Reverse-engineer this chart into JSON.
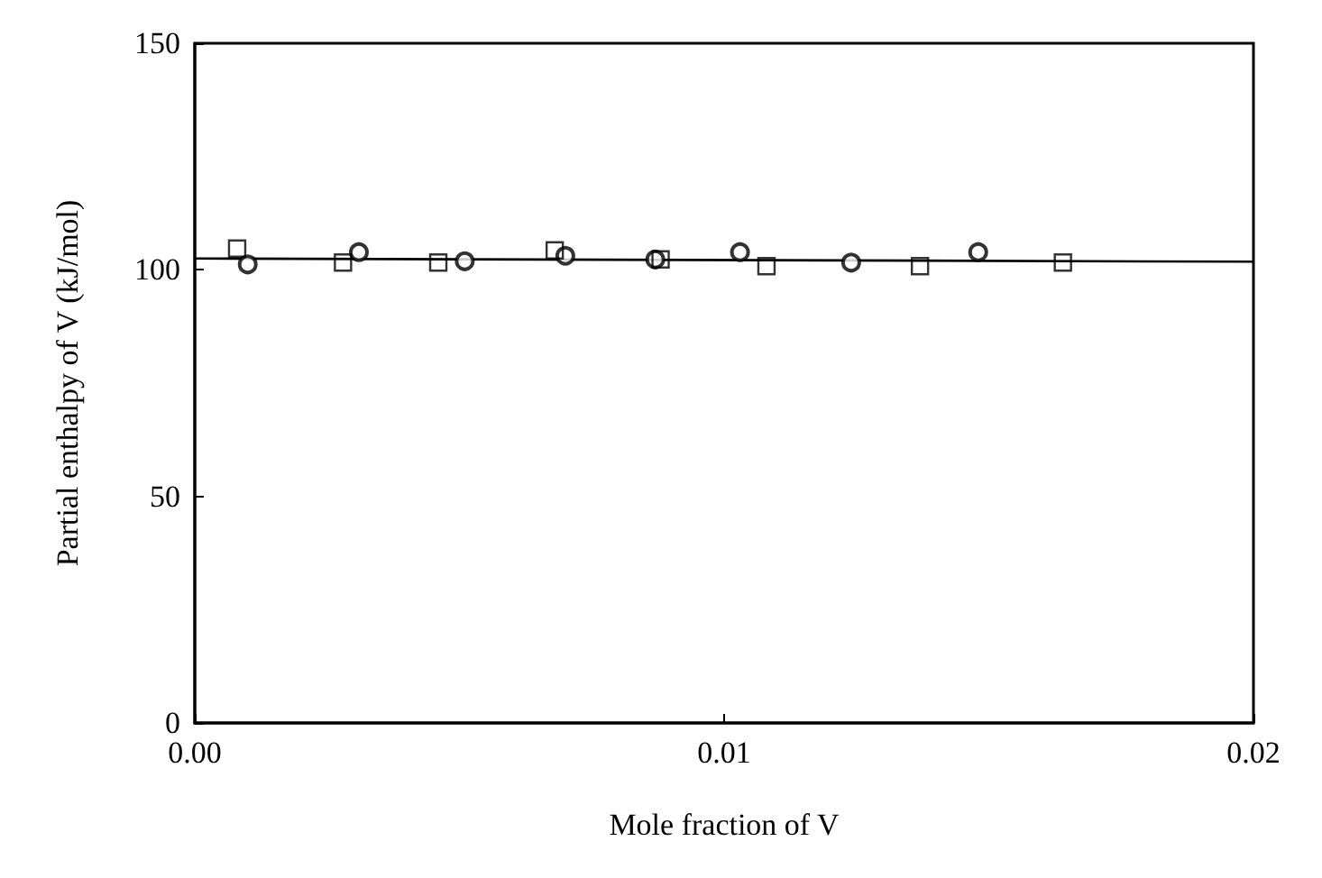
{
  "chart_data": {
    "type": "scatter",
    "xlabel": "Mole fraction of V",
    "ylabel": "Partial enthalpy of V (kJ/mol)",
    "xlim": [
      0,
      0.02
    ],
    "xticks": [
      {
        "value": 0,
        "label": "0.00"
      },
      0.01,
      0.02
    ],
    "ylim": [
      0,
      150
    ],
    "yticks": [
      0,
      50,
      100,
      150
    ],
    "grid": false,
    "series": [
      {
        "marker": "square",
        "color": "#000000",
        "x": [
          0.0008,
          0.0028,
          0.0046,
          0.0068,
          0.0088,
          0.0108,
          0.0137,
          0.0164
        ],
        "values": [
          104.7,
          101.6,
          101.6,
          104.3,
          102.3,
          100.8,
          100.8,
          101.6
        ]
      },
      {
        "marker": "circle",
        "color": "#000000",
        "x": [
          0.001,
          0.0031,
          0.0051,
          0.007,
          0.0087,
          0.0103,
          0.0124,
          0.0148
        ],
        "values": [
          101.2,
          103.9,
          101.9,
          103.1,
          102.3,
          103.9,
          101.6,
          103.9
        ]
      },
      {
        "type": "line",
        "marker": "none",
        "color": "#000000",
        "x": [
          0,
          0.02
        ],
        "values": [
          102.5,
          101.8
        ]
      }
    ]
  }
}
